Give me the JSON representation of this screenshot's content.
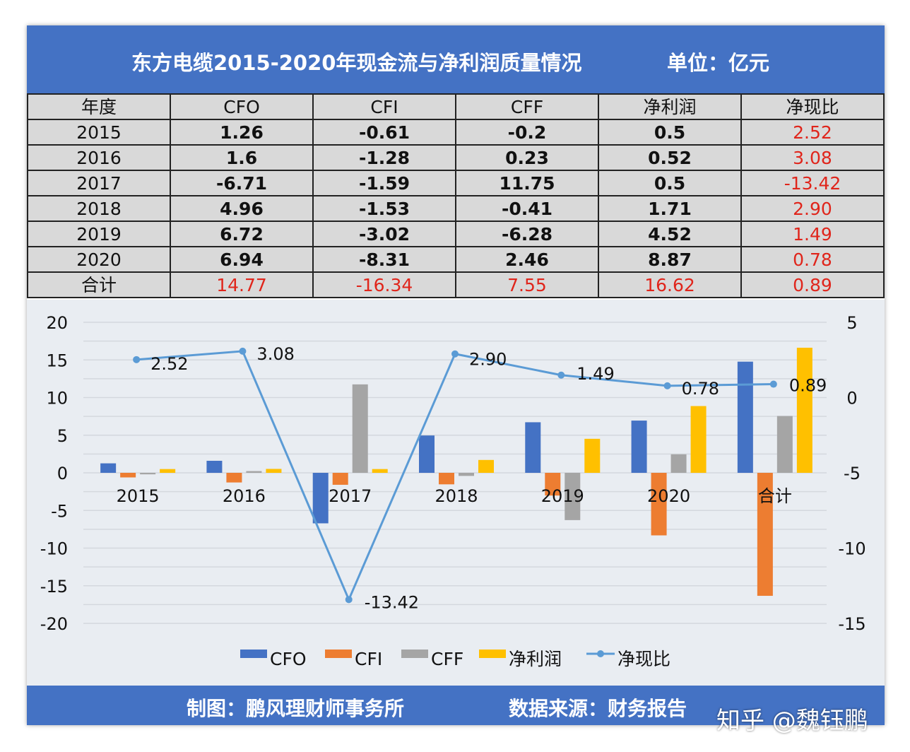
{
  "header": {
    "title": "东方电缆2015-2020年现金流与净利润质量情况",
    "unit": "单位：亿元"
  },
  "table": {
    "columns": [
      "年度",
      "CFO",
      "CFI",
      "CFF",
      "净利润",
      "净现比"
    ],
    "rows": [
      [
        "2015",
        "1.26",
        "-0.61",
        "-0.2",
        "0.5",
        "2.52"
      ],
      [
        "2016",
        "1.6",
        "-1.28",
        "0.23",
        "0.52",
        "3.08"
      ],
      [
        "2017",
        "-6.71",
        "-1.59",
        "11.75",
        "0.5",
        "-13.42"
      ],
      [
        "2018",
        "4.96",
        "-1.53",
        "-0.41",
        "1.71",
        "2.90"
      ],
      [
        "2019",
        "6.72",
        "-3.02",
        "-6.28",
        "4.52",
        "1.49"
      ],
      [
        "2020",
        "6.94",
        "-8.31",
        "2.46",
        "8.87",
        "0.78"
      ],
      [
        "合计",
        "14.77",
        "-16.34",
        "7.55",
        "16.62",
        "0.89"
      ]
    ]
  },
  "chart_data": {
    "type": "bar",
    "categories": [
      "2015",
      "2016",
      "2017",
      "2018",
      "2019",
      "2020",
      "合计"
    ],
    "series": [
      {
        "name": "CFO",
        "type": "bar",
        "color": "#4472c4",
        "axis": "left",
        "values": [
          1.26,
          1.6,
          -6.71,
          4.96,
          6.72,
          6.94,
          14.77
        ]
      },
      {
        "name": "CFI",
        "type": "bar",
        "color": "#ed7d31",
        "axis": "left",
        "values": [
          -0.61,
          -1.28,
          -1.59,
          -1.53,
          -3.02,
          -8.31,
          -16.34
        ]
      },
      {
        "name": "CFF",
        "type": "bar",
        "color": "#a5a5a5",
        "axis": "left",
        "values": [
          -0.2,
          0.23,
          11.75,
          -0.41,
          -6.28,
          2.46,
          7.55
        ]
      },
      {
        "name": "净利润",
        "type": "bar",
        "color": "#ffc000",
        "axis": "left",
        "values": [
          0.5,
          0.52,
          0.5,
          1.71,
          4.52,
          8.87,
          16.62
        ]
      },
      {
        "name": "净现比",
        "type": "line",
        "color": "#5b9bd5",
        "axis": "right",
        "values": [
          2.52,
          3.08,
          -13.42,
          2.9,
          1.49,
          0.78,
          0.89
        ],
        "labels": [
          "2.52",
          "3.08",
          "-13.42",
          "2.90",
          "1.49",
          "0.78",
          "0.89"
        ]
      }
    ],
    "ylim_left": [
      -20,
      20
    ],
    "yticks_left": [
      "20",
      "15",
      "10",
      "5",
      "0",
      "-5",
      "-10",
      "-15",
      "-20"
    ],
    "ylim_right": [
      -15,
      5
    ],
    "yticks_right": [
      "5",
      "0",
      "-5",
      "-10",
      "-15"
    ],
    "grid": true,
    "legend_position": "bottom"
  },
  "footer": {
    "maker": "制图：鹏风理财师事务所",
    "source": "数据来源：财务报告"
  },
  "watermark": "知乎 @魏钰鹏"
}
